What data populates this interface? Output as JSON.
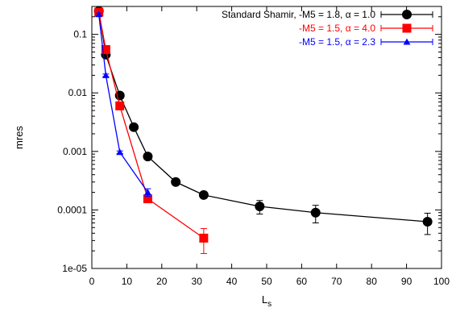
{
  "chart_data": {
    "type": "line",
    "title": "",
    "xlabel": "L",
    "xlabel_sub": "s",
    "ylabel": "mres",
    "xlim": [
      0,
      100
    ],
    "ylim": [
      1e-05,
      0.3
    ],
    "y_scale": "log",
    "x_ticks": [
      0,
      10,
      20,
      30,
      40,
      50,
      60,
      70,
      80,
      90,
      100
    ],
    "x_tick_labels": [
      "0",
      "10",
      "20",
      "30",
      "40",
      "50",
      "60",
      "70",
      "80",
      "90",
      "100"
    ],
    "y_ticks": [
      1e-05,
      0.0001,
      0.001,
      0.01,
      0.1
    ],
    "y_tick_labels": [
      "1e-05",
      "0.0001",
      "0.001",
      "0.01",
      "0.1"
    ],
    "grid": false,
    "legend_position": "top-right",
    "series": [
      {
        "name": "Standard Shamir, -M5 = 1.8, α = 1.0",
        "color": "#000000",
        "marker": "circle",
        "points": [
          {
            "x": 2,
            "y": 0.25,
            "err": 0.01
          },
          {
            "x": 4,
            "y": 0.045,
            "err": 0.003
          },
          {
            "x": 8,
            "y": 0.009,
            "err": 0.0008
          },
          {
            "x": 12,
            "y": 0.0026,
            "err": 0.0002
          },
          {
            "x": 16,
            "y": 0.00082,
            "err": 8e-05
          },
          {
            "x": 24,
            "y": 0.0003,
            "err": 3e-05
          },
          {
            "x": 32,
            "y": 0.00018,
            "err": 2e-05
          },
          {
            "x": 48,
            "y": 0.000115,
            "err": 3e-05
          },
          {
            "x": 64,
            "y": 9e-05,
            "err": 3e-05
          },
          {
            "x": 96,
            "y": 6.3e-05,
            "err": 2.5e-05
          }
        ]
      },
      {
        "name": "-M5 = 1.5, α = 4.0",
        "color": "#ff0000",
        "marker": "square",
        "points": [
          {
            "x": 2,
            "y": 0.24,
            "err": 0.01
          },
          {
            "x": 4,
            "y": 0.055,
            "err": 0.004
          },
          {
            "x": 8,
            "y": 0.006,
            "err": 0.0005
          },
          {
            "x": 16,
            "y": 0.000155,
            "err": 2e-05
          },
          {
            "x": 32,
            "y": 3.3e-05,
            "err": 1.5e-05
          }
        ]
      },
      {
        "name": "-M5 = 1.5, α = 2.3",
        "color": "#0000ff",
        "marker": "triangle",
        "points": [
          {
            "x": 2,
            "y": 0.22,
            "err": 0.01
          },
          {
            "x": 4,
            "y": 0.02,
            "err": 0.001
          },
          {
            "x": 8,
            "y": 0.00097,
            "err": 5e-05
          },
          {
            "x": 16,
            "y": 0.0002,
            "err": 3e-05
          }
        ]
      }
    ]
  }
}
